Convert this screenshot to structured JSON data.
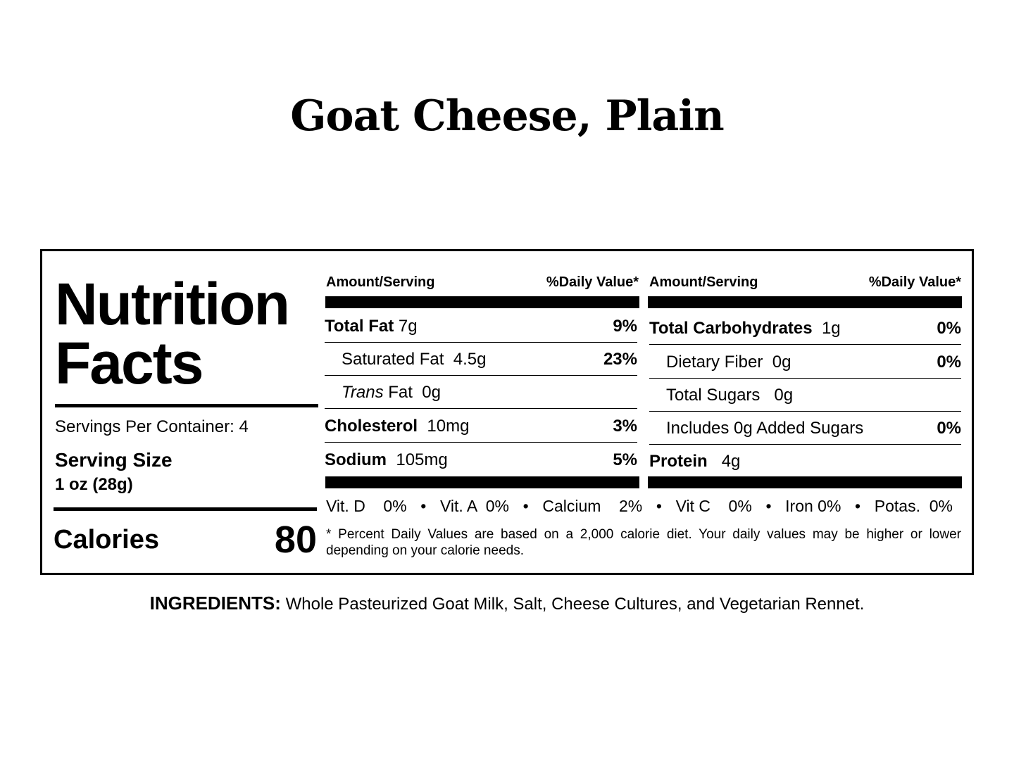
{
  "title": "Goat Cheese, Plain",
  "panel": {
    "heading_line1": "Nutrition",
    "heading_line2": "Facts",
    "servings_per_container": "Servings Per Container: 4",
    "serving_size_label": "Serving Size",
    "serving_size_value": "1 oz (28g)",
    "calories_label": "Calories",
    "calories_value": "80"
  },
  "columns": [
    {
      "header_left": "Amount/Serving",
      "header_right": "%Daily Value*",
      "rows": [
        {
          "label": "Total Fat",
          "amount": "7g",
          "dv": "9%"
        },
        {
          "label": "Saturated Fat",
          "amount": "4.5g",
          "dv": "23%"
        },
        {
          "label_italic": "Trans",
          "label": "Fat",
          "amount": "0g",
          "dv": ""
        },
        {
          "label": "Cholesterol",
          "amount": "10mg",
          "dv": "3%"
        },
        {
          "label": "Sodium",
          "amount": "105mg",
          "dv": "5%"
        }
      ]
    },
    {
      "header_left": "Amount/Serving",
      "header_right": "%Daily Value*",
      "rows": [
        {
          "label": "Total Carbohydrates",
          "amount": "1g",
          "dv": "0%"
        },
        {
          "label": "Dietary Fiber",
          "amount": "0g",
          "dv": "0%"
        },
        {
          "label": "Total Sugars",
          "amount": "0g",
          "dv": ""
        },
        {
          "label": "Includes 0g Added Sugars",
          "amount": "",
          "dv": "0%"
        },
        {
          "label": "Protein",
          "amount": "4g",
          "dv": ""
        }
      ]
    }
  ],
  "vitamins": [
    "Vit. D    0%",
    "•",
    "Vit. A  0%",
    "•",
    "Calcium    2%",
    "•",
    "Vit C    0%",
    "•",
    "Iron 0%",
    "•",
    "Potas.  0%"
  ],
  "footnote": "* Percent Daily Values are based on a 2,000 calorie diet. Your daily values may be higher or lower depending on your calorie needs.",
  "ingredients": {
    "label": "INGREDIENTS:",
    "text": "Whole Pasteurized Goat Milk, Salt, Cheese Cultures, and Vegetarian Rennet."
  }
}
